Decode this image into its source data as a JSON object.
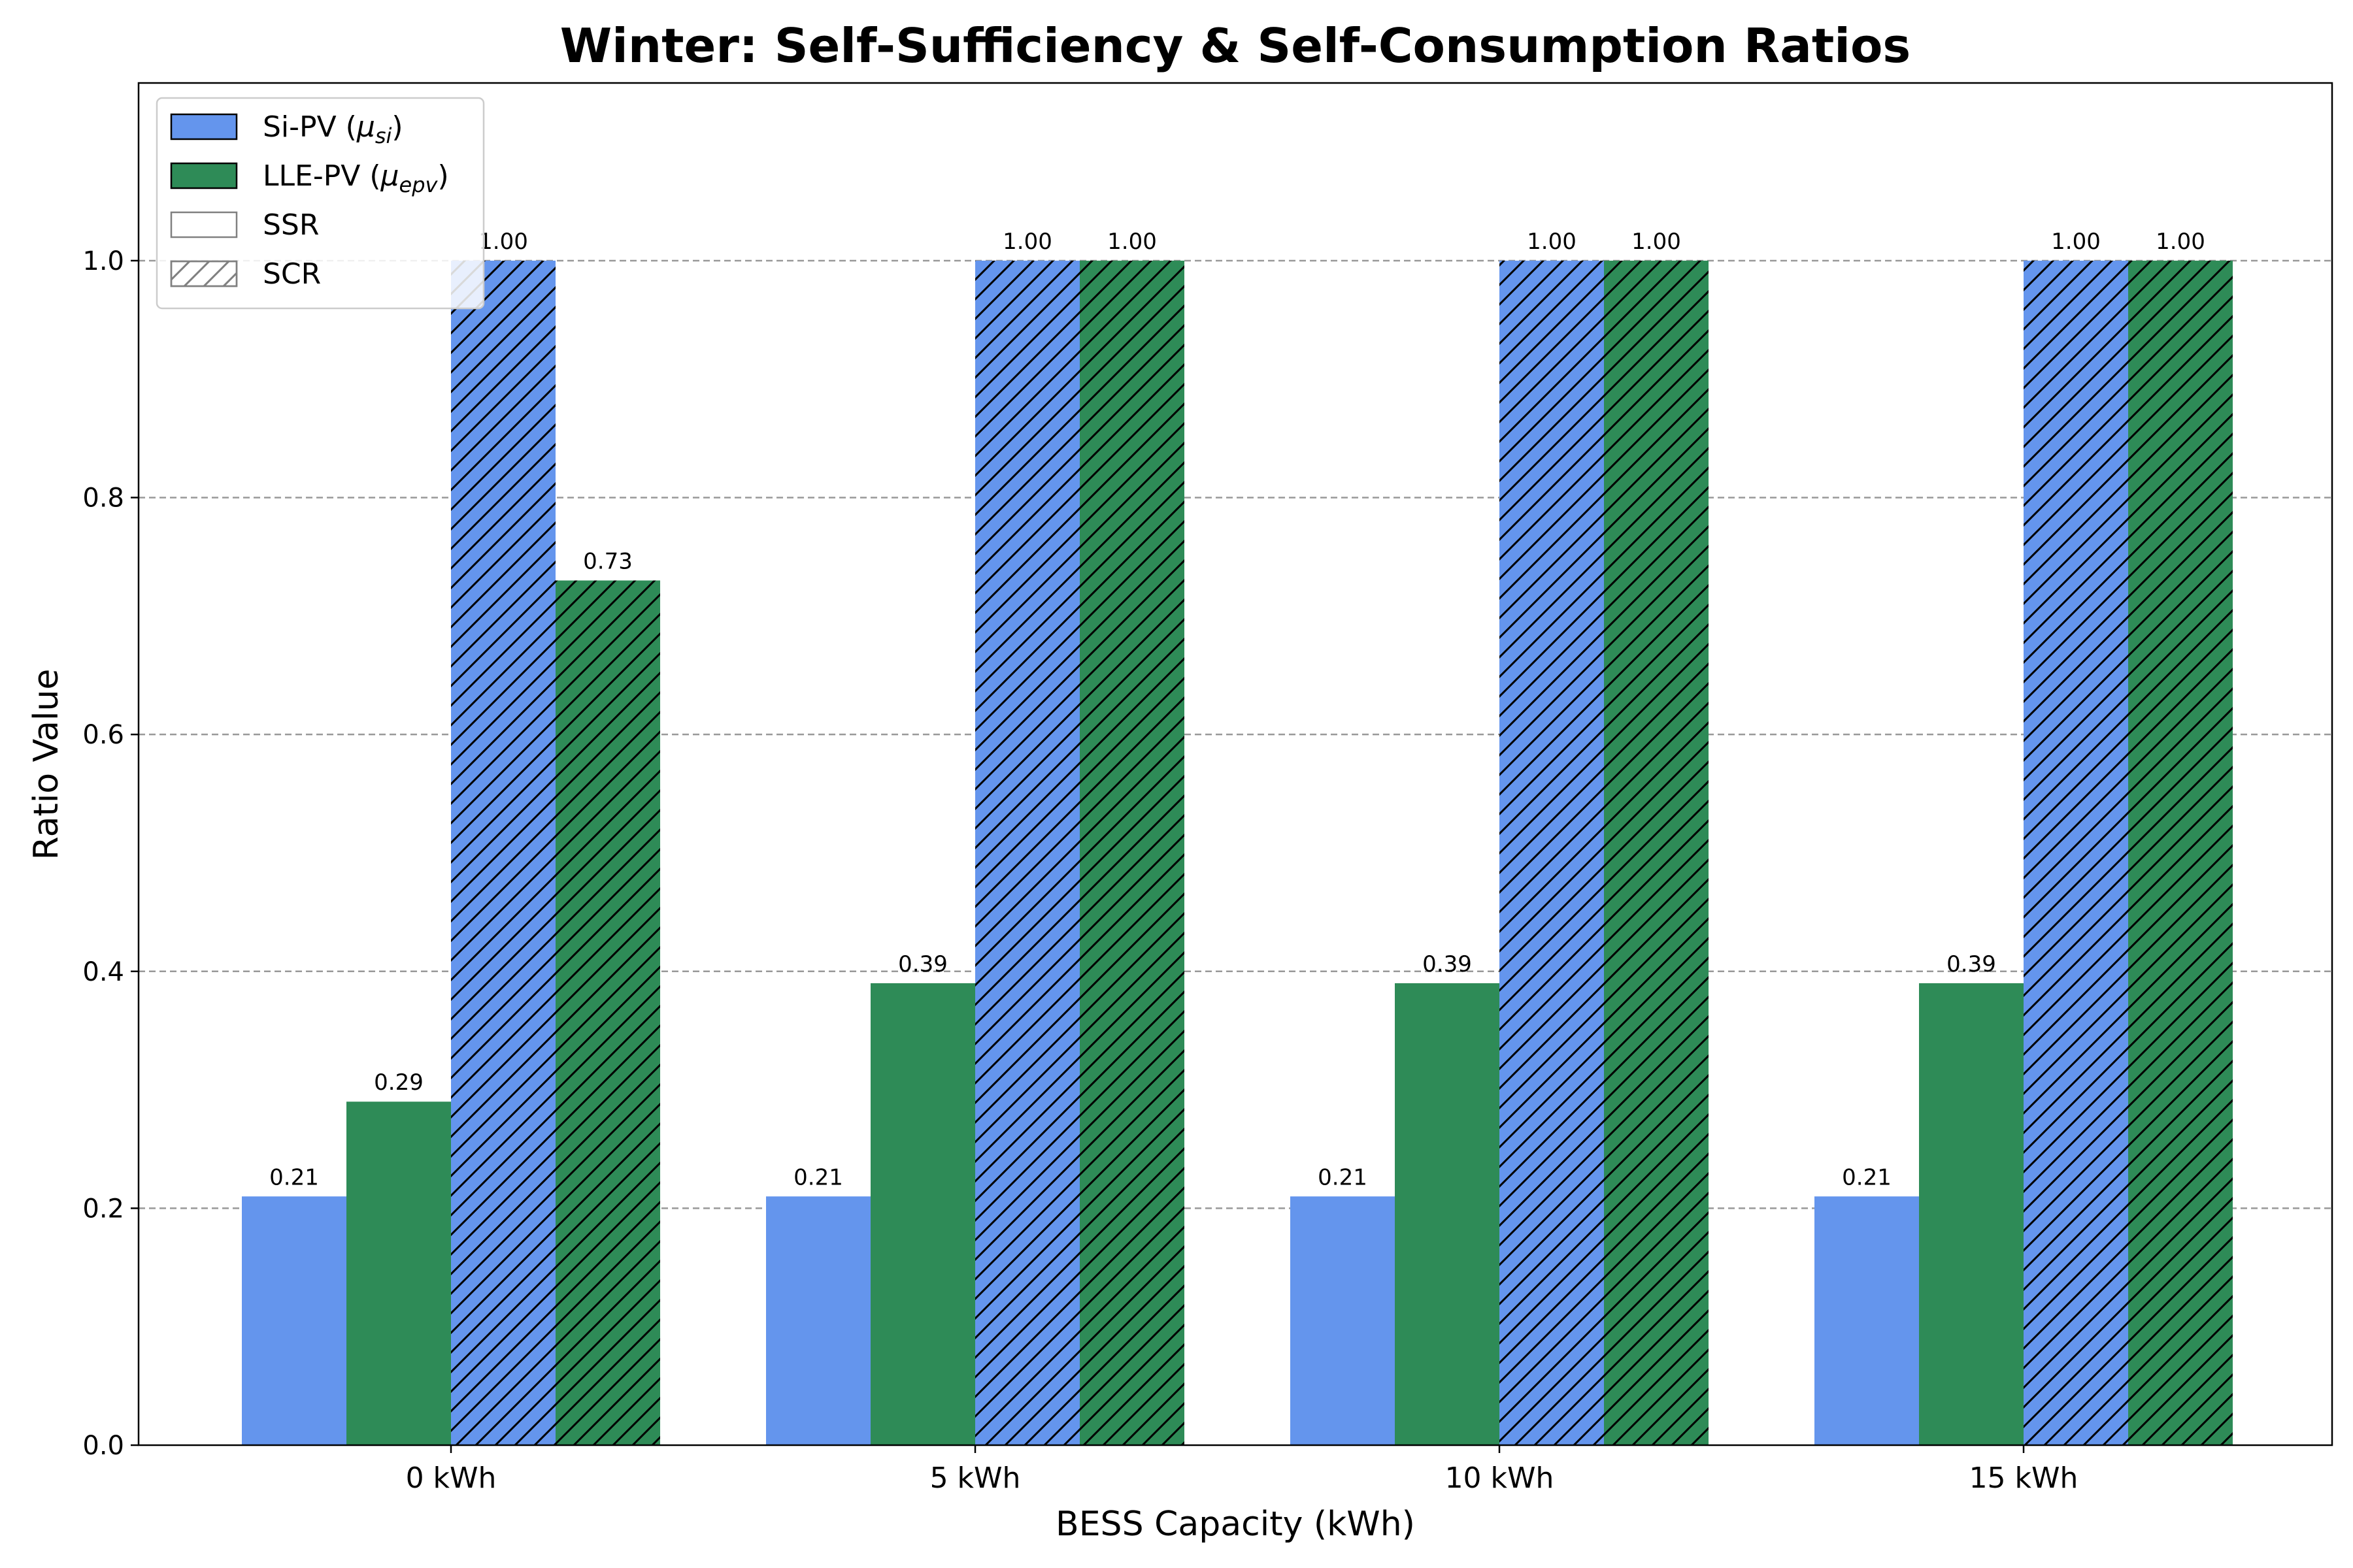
{
  "chart_data": {
    "type": "bar",
    "title": "Winter: Self-Sufficiency & Self-Consumption Ratios",
    "xlabel": "BESS Capacity (kWh)",
    "ylabel": "Ratio Value",
    "categories": [
      "0 kWh",
      "5 kWh",
      "10 kWh",
      "15 kWh"
    ],
    "ylim": [
      0,
      1.15
    ],
    "yticks": [
      0.0,
      0.2,
      0.4,
      0.6,
      0.8,
      1.0
    ],
    "ytick_labels": [
      "0.0",
      "0.2",
      "0.4",
      "0.6",
      "0.8",
      "1.0"
    ],
    "grid": "horizontal dashed",
    "legend_position": "top-left",
    "series": [
      {
        "name": "Si-PV SSR",
        "pv": "Si-PV",
        "metric": "SSR",
        "color": "#6495ED",
        "hatch": false,
        "values": [
          0.21,
          0.21,
          0.21,
          0.21
        ],
        "labels": [
          "0.21",
          "0.21",
          "0.21",
          "0.21"
        ]
      },
      {
        "name": "LLE-PV SSR",
        "pv": "LLE-PV",
        "metric": "SSR",
        "color": "#2E8B57",
        "hatch": false,
        "values": [
          0.29,
          0.39,
          0.39,
          0.39
        ],
        "labels": [
          "0.29",
          "0.39",
          "0.39",
          "0.39"
        ]
      },
      {
        "name": "Si-PV SCR",
        "pv": "Si-PV",
        "metric": "SCR",
        "color": "#6495ED",
        "hatch": true,
        "values": [
          1.0,
          1.0,
          1.0,
          1.0
        ],
        "labels": [
          "1.00",
          "1.00",
          "1.00",
          "1.00"
        ]
      },
      {
        "name": "LLE-PV SCR",
        "pv": "LLE-PV",
        "metric": "SCR",
        "color": "#2E8B57",
        "hatch": true,
        "values": [
          0.73,
          1.0,
          1.0,
          1.0
        ],
        "labels": [
          "0.73",
          "1.00",
          "1.00",
          "1.00"
        ]
      }
    ],
    "legend": [
      {
        "label": "Si-PV (",
        "math": "μ",
        "sub": "si",
        "tail": ")",
        "fill": "#6495ED",
        "hatch": false,
        "stroke": "#000000"
      },
      {
        "label": "LLE-PV (",
        "math": "μ",
        "sub": "epv",
        "tail": ")",
        "fill": "#2E8B57",
        "hatch": false,
        "stroke": "#000000"
      },
      {
        "label": "SSR",
        "math": "",
        "sub": "",
        "tail": "",
        "fill": "#ffffff",
        "hatch": false,
        "stroke": "#808080"
      },
      {
        "label": "SCR",
        "math": "",
        "sub": "",
        "tail": "",
        "fill": "#ffffff",
        "hatch": true,
        "stroke": "#808080"
      }
    ]
  }
}
